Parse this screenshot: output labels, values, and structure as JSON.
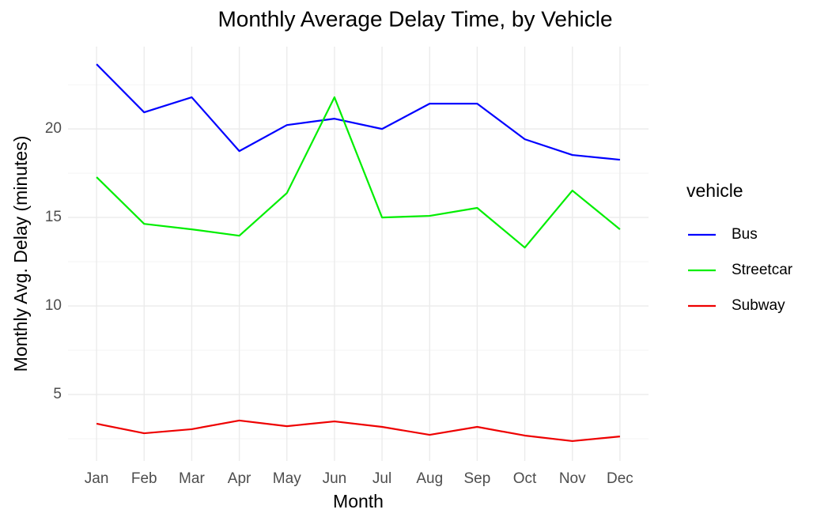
{
  "chart_data": {
    "type": "line",
    "title": "Monthly Average Delay Time, by Vehicle",
    "x_label": "Month",
    "y_label": "Monthly Avg. Delay (minutes)",
    "legend_title": "vehicle",
    "legend_position": "right",
    "categories": [
      "Jan",
      "Feb",
      "Mar",
      "Apr",
      "May",
      "Jun",
      "Jul",
      "Aug",
      "Sep",
      "Oct",
      "Nov",
      "Dec"
    ],
    "series": [
      {
        "name": "Bus",
        "color": "#0000ff",
        "values": [
          23.66,
          20.94,
          21.79,
          18.75,
          20.22,
          20.58,
          20.0,
          21.43,
          21.43,
          19.42,
          18.53,
          18.26
        ]
      },
      {
        "name": "Streetcar",
        "color": "#00ee00",
        "values": [
          17.28,
          14.64,
          14.33,
          13.97,
          16.38,
          21.79,
          15.0,
          15.09,
          15.54,
          13.3,
          16.52,
          14.33
        ]
      },
      {
        "name": "Subway",
        "color": "#ee0000",
        "values": [
          3.35,
          2.81,
          3.04,
          3.53,
          3.21,
          3.48,
          3.17,
          2.72,
          3.17,
          2.68,
          2.37,
          2.63
        ]
      }
    ],
    "ylim": [
      1.25,
      24.65
    ],
    "yticks": [
      5,
      10,
      15,
      20
    ],
    "y_minor_grid": [
      2.5,
      7.5,
      12.5,
      17.5,
      22.5
    ],
    "grid": true
  }
}
